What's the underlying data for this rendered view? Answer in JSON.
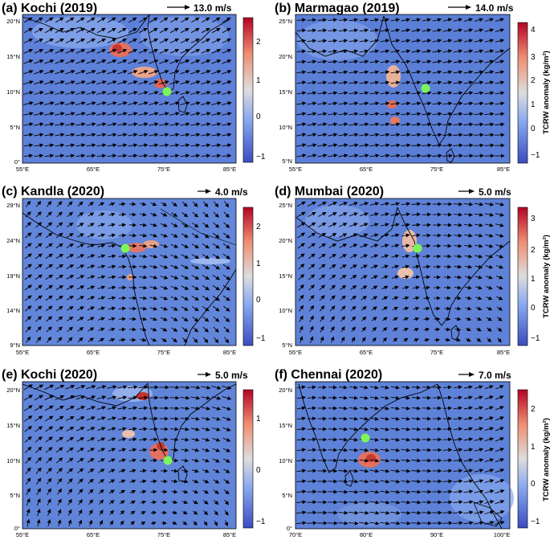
{
  "colors": {
    "ocean_base": "#5c7fd6",
    "land_base": "#7898e0",
    "colorbar": [
      "#3b4cc0",
      "#6a8be8",
      "#a9c4f2",
      "#dddddd",
      "#f4b597",
      "#e8735a",
      "#b40426"
    ],
    "station_marker": "#7cf55a",
    "coastline": "#000000",
    "arrow": "#000000"
  },
  "panels": [
    {
      "id": "a",
      "title": "(a) Kochi (2019)",
      "reference_vector": "13.0 m/s",
      "lat_ticks": [
        "20°N",
        "15°N",
        "10°N",
        "5°N",
        "0°"
      ],
      "lon_ticks": [
        "55°E",
        "65°E",
        "75°E",
        "85°E"
      ],
      "colorbar": {
        "ticks": [
          "2",
          "1",
          "0",
          "−1"
        ],
        "label": ""
      },
      "station": "Kochi"
    },
    {
      "id": "b",
      "title": "(b) Marmagao (2019)",
      "reference_vector": "14.0 m/s",
      "lat_ticks": [
        "25°N",
        "20°N",
        "15°N",
        "10°N",
        "5°N"
      ],
      "lon_ticks": [
        "55°E",
        "65°E",
        "75°E",
        "85°E"
      ],
      "colorbar": {
        "ticks": [
          "4",
          "3",
          "2",
          "1",
          "0",
          "−1"
        ],
        "label": "TCRW anomaly (kg/m²)"
      },
      "station": "Marmagao"
    },
    {
      "id": "c",
      "title": "(c) Kandla (2020)",
      "reference_vector": "4.0 m/s",
      "lat_ticks": [
        "29°N",
        "24°N",
        "19°N",
        "14°N",
        "9°N"
      ],
      "lon_ticks": [
        "55°E",
        "65°E",
        "75°E",
        "85°E"
      ],
      "colorbar": {
        "ticks": [
          "2",
          "1",
          "0",
          "−1"
        ],
        "label": ""
      },
      "station": "Kandla"
    },
    {
      "id": "d",
      "title": "(d) Mumbai (2020)",
      "reference_vector": "5.0 m/s",
      "lat_ticks": [
        "25°N",
        "20°N",
        "15°N",
        "10°N",
        "5°N"
      ],
      "lon_ticks": [
        "55°E",
        "65°E",
        "75°E",
        "85°E"
      ],
      "colorbar": {
        "ticks": [
          "3",
          "2",
          "1",
          "0",
          "−1"
        ],
        "label": "TCRW anomaly (kg/m²)"
      },
      "station": "Mumbai"
    },
    {
      "id": "e",
      "title": "(e) Kochi (2020)",
      "reference_vector": "5.0 m/s",
      "lat_ticks": [
        "20°N",
        "15°N",
        "10°N",
        "5°N",
        "0°"
      ],
      "lon_ticks": [
        "55°E",
        "65°E",
        "75°E",
        "85°E"
      ],
      "colorbar": {
        "ticks": [
          "1",
          "0",
          "−1"
        ],
        "label": ""
      },
      "station": "Kochi"
    },
    {
      "id": "f",
      "title": "(f) Chennai (2020)",
      "reference_vector": "7.0 m/s",
      "lat_ticks": [
        "20°N",
        "15°N",
        "10°N",
        "5°N",
        "0°"
      ],
      "lon_ticks": [
        "70°E",
        "80°E",
        "90°E",
        "100°E"
      ],
      "colorbar": {
        "ticks": [
          "2",
          "1",
          "0",
          "−1"
        ],
        "label": "TCRW anomaly (kg/m²)"
      },
      "station": "Chennai"
    }
  ]
}
